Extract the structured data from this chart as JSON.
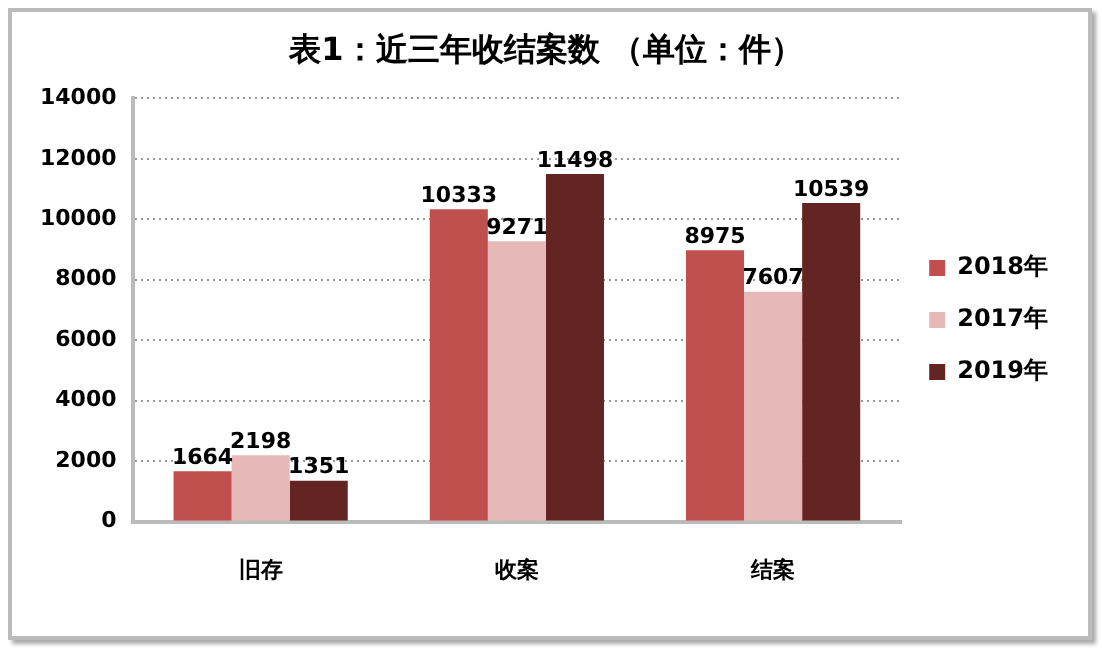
{
  "chart_data": {
    "type": "bar",
    "title": "表1：近三年收结案数 （单位：件）",
    "categories": [
      "旧存",
      "收案",
      "结案"
    ],
    "series": [
      {
        "name": "2018年",
        "color": "#c0504d",
        "values": [
          1664,
          10333,
          8975
        ]
      },
      {
        "name": "2017年",
        "color": "#e6b9b8",
        "values": [
          2198,
          9271,
          7607
        ]
      },
      {
        "name": "2019年",
        "color": "#632523",
        "values": [
          1351,
          11498,
          10539
        ]
      }
    ],
    "ylim": [
      0,
      14000
    ],
    "yticks": [
      0,
      2000,
      4000,
      6000,
      8000,
      10000,
      12000,
      14000
    ],
    "grid": "y",
    "legend": "right",
    "data_labels": true
  }
}
